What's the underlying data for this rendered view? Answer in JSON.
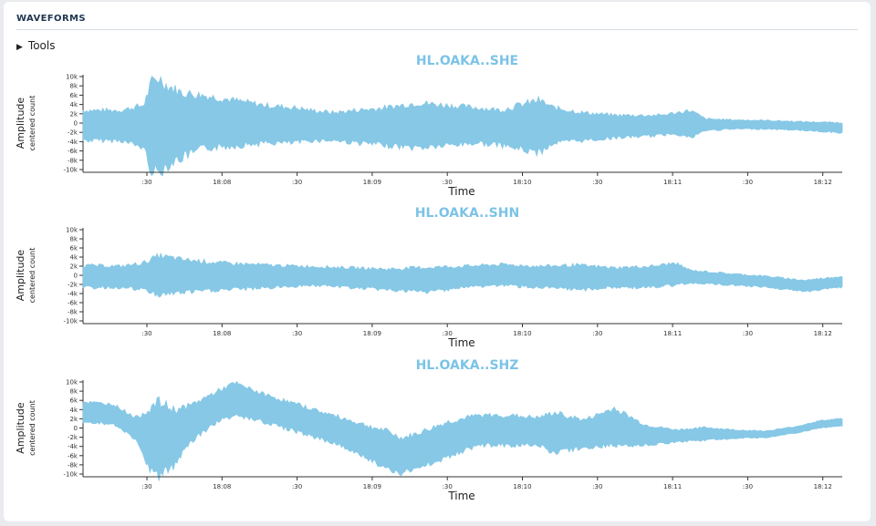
{
  "section": {
    "title": "WAVEFORMS"
  },
  "tools": {
    "label": "Tools",
    "icon": "triangle-right-icon"
  },
  "colors": {
    "waveform": "#86c8e6",
    "title": "#7cc3e6",
    "axis": "#333333"
  },
  "time_ticks": [
    ":30",
    "18:08",
    ":30",
    "18:09",
    ":30",
    "18:10",
    ":30",
    "18:11",
    ":30",
    "18:12"
  ],
  "chart_data": [
    {
      "type": "line",
      "title": "HL.OAKA..SHE",
      "xlabel": "Time",
      "ylabel": "Amplitude",
      "ylabel2": "centered count",
      "ylim": [
        -10000,
        10000
      ],
      "y_ticks": [
        "10k",
        "8k",
        "6k",
        "4k",
        "2k",
        "0",
        "-2k",
        "-4k",
        "-6k",
        "-8k",
        "-10k"
      ],
      "x_range": [
        "18:07:20",
        "18:12:20"
      ],
      "envelope": {
        "t": [
          0,
          0.05,
          0.08,
          0.09,
          0.1,
          0.11,
          0.13,
          0.16,
          0.2,
          0.24,
          0.28,
          0.3,
          0.33,
          0.36,
          0.4,
          0.44,
          0.48,
          0.52,
          0.55,
          0.6,
          0.62,
          0.66,
          0.7,
          0.76,
          0.78,
          0.8,
          0.82,
          0.86,
          0.9,
          0.95,
          1.0
        ],
        "min": [
          -3500,
          -3500,
          -5000,
          -9500,
          -10000,
          -8500,
          -7000,
          -5000,
          -4500,
          -4000,
          -4000,
          -3500,
          -3500,
          -4000,
          -4500,
          -5000,
          -4500,
          -4000,
          -4500,
          -6000,
          -4000,
          -3500,
          -3000,
          -2500,
          -2000,
          -3000,
          -1500,
          -1200,
          -1200,
          -1500,
          -2000
        ],
        "max": [
          2500,
          2500,
          3500,
          8000,
          9000,
          7500,
          6000,
          5500,
          4500,
          3500,
          3000,
          2500,
          2000,
          2500,
          3000,
          4000,
          3500,
          3000,
          2500,
          4500,
          3000,
          2000,
          1500,
          1500,
          2000,
          2500,
          800,
          600,
          500,
          200,
          0
        ]
      }
    },
    {
      "type": "line",
      "title": "HL.OAKA..SHN",
      "xlabel": "Time",
      "ylabel": "Amplitude",
      "ylabel2": "centered count",
      "ylim": [
        -10000,
        10000
      ],
      "y_ticks": [
        "10k",
        "8k",
        "6k",
        "4k",
        "2k",
        "0",
        "-2k",
        "-4k",
        "-6k",
        "-8k",
        "-10k"
      ],
      "x_range": [
        "18:07:20",
        "18:12:20"
      ],
      "envelope": {
        "t": [
          0,
          0.05,
          0.08,
          0.1,
          0.13,
          0.18,
          0.25,
          0.3,
          0.35,
          0.4,
          0.45,
          0.5,
          0.55,
          0.6,
          0.65,
          0.7,
          0.75,
          0.78,
          0.8,
          0.85,
          0.9,
          0.95,
          1.0
        ],
        "min": [
          -2500,
          -2500,
          -3000,
          -4000,
          -3500,
          -3000,
          -2500,
          -2000,
          -2500,
          -3000,
          -3500,
          -2500,
          -2000,
          -2500,
          -3000,
          -2500,
          -2500,
          -2000,
          -1500,
          -2000,
          -2500,
          -3500,
          -2500
        ],
        "max": [
          2000,
          1800,
          2500,
          4000,
          3200,
          2500,
          2000,
          1800,
          1500,
          1200,
          1500,
          1800,
          2200,
          1800,
          2000,
          1500,
          1800,
          2500,
          1000,
          300,
          -300,
          -1200,
          -300
        ]
      }
    },
    {
      "type": "line",
      "title": "HL.OAKA..SHZ",
      "xlabel": "Time",
      "ylabel": "Amplitude",
      "ylabel2": "centered count",
      "ylim": [
        -10000,
        10000
      ],
      "y_ticks": [
        "10k",
        "8k",
        "6k",
        "4k",
        "2k",
        "0",
        "-2k",
        "-4k",
        "-6k",
        "-8k",
        "-10k"
      ],
      "x_range": [
        "18:07:20",
        "18:12:20"
      ],
      "envelope": {
        "t": [
          0,
          0.04,
          0.07,
          0.09,
          0.1,
          0.12,
          0.14,
          0.18,
          0.2,
          0.24,
          0.28,
          0.32,
          0.36,
          0.4,
          0.42,
          0.44,
          0.48,
          0.52,
          0.56,
          0.6,
          0.62,
          0.66,
          0.7,
          0.74,
          0.78,
          0.82,
          0.86,
          0.9,
          0.94,
          0.97,
          1.0
        ],
        "min": [
          1500,
          1000,
          -2500,
          -9000,
          -10000,
          -8000,
          -3000,
          2000,
          3000,
          1500,
          -500,
          -2500,
          -5000,
          -8500,
          -9500,
          -8500,
          -6000,
          -3500,
          -3500,
          -3500,
          -5000,
          -4000,
          -3500,
          -3500,
          -3000,
          -2500,
          -2200,
          -2000,
          -1000,
          0,
          500
        ],
        "max": [
          5500,
          5000,
          2000,
          4000,
          5000,
          3500,
          4500,
          8000,
          9500,
          7000,
          5000,
          3000,
          1000,
          -1000,
          -2500,
          -1500,
          1000,
          2500,
          2500,
          2000,
          3000,
          1500,
          4000,
          500,
          -500,
          0,
          -500,
          -700,
          300,
          1500,
          2000
        ]
      }
    }
  ]
}
